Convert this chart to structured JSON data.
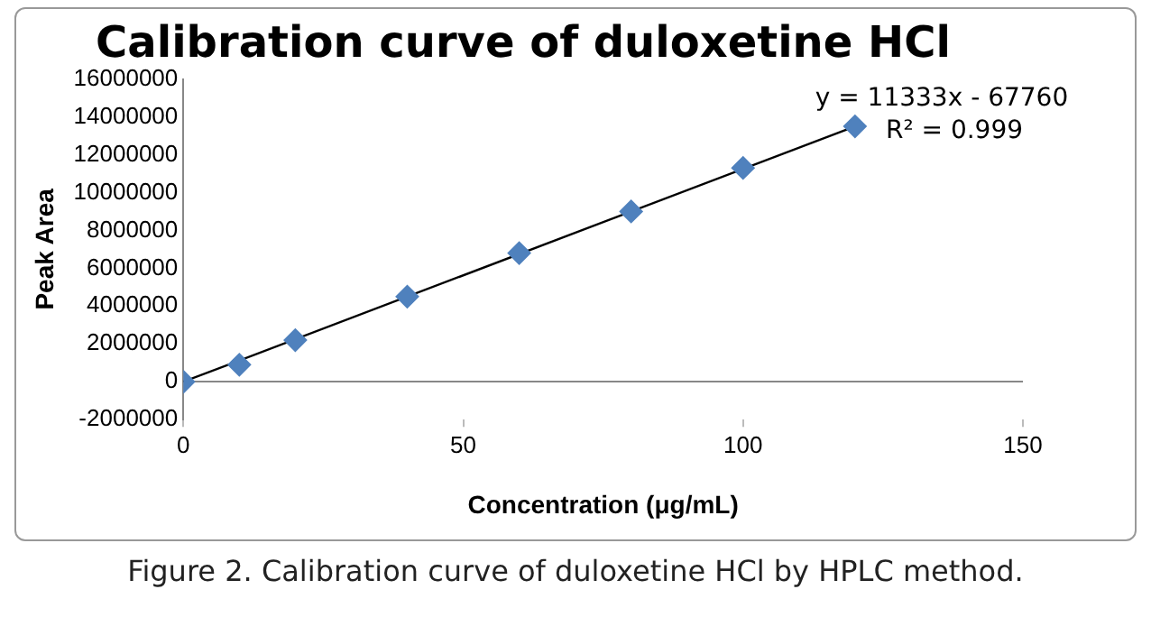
{
  "chart_data": {
    "type": "scatter",
    "title": "Calibration curve of duloxetine HCl",
    "xlabel": "Concentration (μg/mL)",
    "ylabel": "Peak Area",
    "x": [
      0,
      10,
      20,
      40,
      60,
      80,
      100,
      120
    ],
    "series": [
      {
        "color": "#4f81bd",
        "marker": "diamond",
        "values": [
          0,
          900000,
          2200000,
          4500000,
          6800000,
          9000000,
          11300000,
          13500000
        ]
      },
      {
        "type": "line",
        "color": "#000000",
        "marker": "none",
        "x": [
          0,
          120
        ],
        "values": [
          0,
          13500000
        ]
      }
    ],
    "xlim": [
      0,
      150
    ],
    "xticks": [
      0,
      50,
      100,
      150
    ],
    "ylim": [
      -2000000,
      16000000
    ],
    "yticks": [
      -2000000,
      0,
      2000000,
      4000000,
      6000000,
      8000000,
      10000000,
      12000000,
      14000000,
      16000000
    ],
    "grid": false,
    "legend": false,
    "annotations": [
      "y = 11333x - 67760",
      "R² = 0.999",
      "Figure 2. Calibration curve of duloxetine HCl by HPLC method."
    ]
  }
}
